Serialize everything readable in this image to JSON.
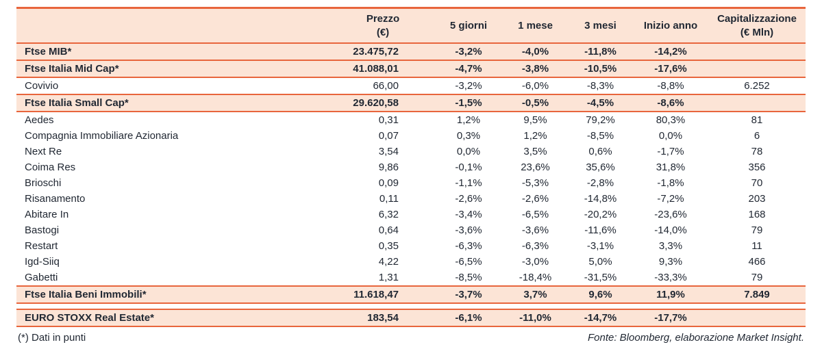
{
  "colors": {
    "accent": "#E8653C",
    "highlight_bg": "#FCE4D6",
    "text": "#212833"
  },
  "chart_data": {
    "type": "table",
    "columns": [
      "",
      "Prezzo\n(€)",
      "5 giorni",
      "1 mese",
      "3 mesi",
      "Inizio anno",
      "Capitalizzazione\n(€ Mln)"
    ],
    "rows": [
      {
        "label": "Ftse MIB*",
        "highlight": true,
        "values": [
          "23.475,72",
          "-3,2%",
          "-4,0%",
          "-11,8%",
          "-14,2%",
          ""
        ]
      },
      {
        "label": "Ftse Italia Mid Cap*",
        "highlight": true,
        "values": [
          "41.088,01",
          "-4,7%",
          "-3,8%",
          "-10,5%",
          "-17,6%",
          ""
        ]
      },
      {
        "label": "Covivio",
        "highlight": false,
        "values": [
          "66,00",
          "-3,2%",
          "-6,0%",
          "-8,3%",
          "-8,8%",
          "6.252"
        ]
      },
      {
        "label": "Ftse Italia Small Cap*",
        "highlight": true,
        "values": [
          "29.620,58",
          "-1,5%",
          "-0,5%",
          "-4,5%",
          "-8,6%",
          ""
        ]
      },
      {
        "label": "Aedes",
        "highlight": false,
        "values": [
          "0,31",
          "1,2%",
          "9,5%",
          "79,2%",
          "80,3%",
          "81"
        ]
      },
      {
        "label": "Compagnia Immobiliare Azionaria",
        "highlight": false,
        "values": [
          "0,07",
          "0,3%",
          "1,2%",
          "-8,5%",
          "0,0%",
          "6"
        ]
      },
      {
        "label": "Next Re",
        "highlight": false,
        "values": [
          "3,54",
          "0,0%",
          "3,5%",
          "0,6%",
          "-1,7%",
          "78"
        ]
      },
      {
        "label": "Coima Res",
        "highlight": false,
        "values": [
          "9,86",
          "-0,1%",
          "23,6%",
          "35,6%",
          "31,8%",
          "356"
        ]
      },
      {
        "label": "Brioschi",
        "highlight": false,
        "values": [
          "0,09",
          "-1,1%",
          "-5,3%",
          "-2,8%",
          "-1,8%",
          "70"
        ]
      },
      {
        "label": "Risanamento",
        "highlight": false,
        "values": [
          "0,11",
          "-2,6%",
          "-2,6%",
          "-14,8%",
          "-7,2%",
          "203"
        ]
      },
      {
        "label": "Abitare In",
        "highlight": false,
        "values": [
          "6,32",
          "-3,4%",
          "-6,5%",
          "-20,2%",
          "-23,6%",
          "168"
        ]
      },
      {
        "label": "Bastogi",
        "highlight": false,
        "values": [
          "0,64",
          "-3,6%",
          "-3,6%",
          "-11,6%",
          "-14,0%",
          "79"
        ]
      },
      {
        "label": "Restart",
        "highlight": false,
        "values": [
          "0,35",
          "-6,3%",
          "-6,3%",
          "-3,1%",
          "3,3%",
          "11"
        ]
      },
      {
        "label": "Igd-Siiq",
        "highlight": false,
        "values": [
          "4,22",
          "-6,5%",
          "-3,0%",
          "5,0%",
          "9,3%",
          "466"
        ]
      },
      {
        "label": "Gabetti",
        "highlight": false,
        "values": [
          "1,31",
          "-8,5%",
          "-18,4%",
          "-31,5%",
          "-33,3%",
          "79"
        ]
      },
      {
        "label": "Ftse Italia Beni Immobili*",
        "highlight": true,
        "values": [
          "11.618,47",
          "-3,7%",
          "3,7%",
          "9,6%",
          "11,9%",
          "7.849"
        ]
      },
      {
        "label": "EURO STOXX Real Estate*",
        "highlight": true,
        "gap_before": true,
        "values": [
          "183,54",
          "-6,1%",
          "-11,0%",
          "-14,7%",
          "-17,7%",
          ""
        ]
      }
    ]
  },
  "footer": {
    "note": "(*) Dati in punti",
    "source": "Fonte: Bloomberg, elaborazione Market Insight."
  }
}
